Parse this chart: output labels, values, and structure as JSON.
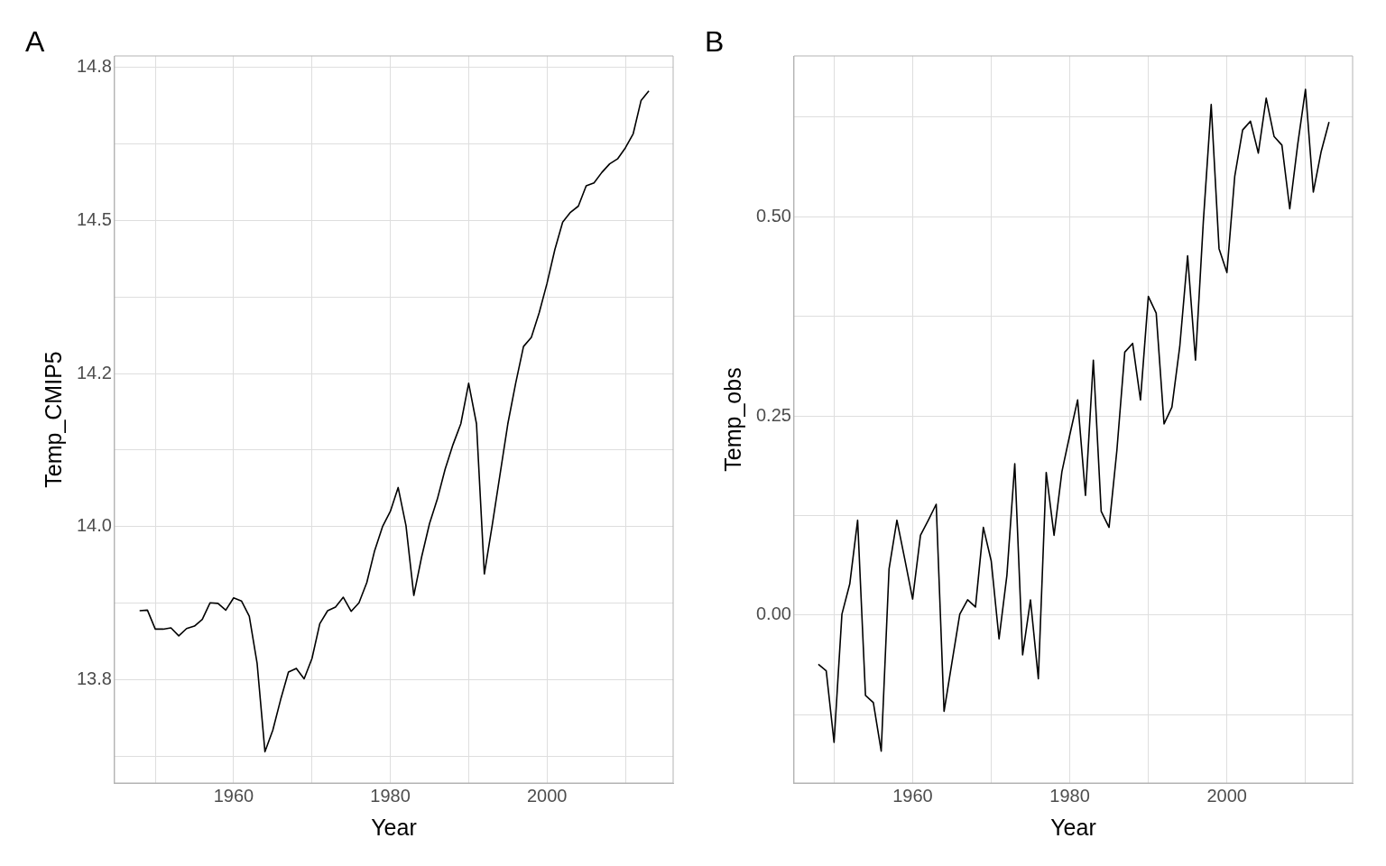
{
  "chart_data": [
    {
      "type": "line",
      "annotations": [
        "A"
      ],
      "xlabel": "Year",
      "ylabel": "Temp_CMIP5",
      "grid": true,
      "legend": false,
      "x": [
        1948,
        1949,
        1950,
        1951,
        1952,
        1953,
        1954,
        1955,
        1956,
        1957,
        1958,
        1959,
        1960,
        1961,
        1962,
        1963,
        1964,
        1965,
        1966,
        1967,
        1968,
        1969,
        1970,
        1971,
        1972,
        1973,
        1974,
        1975,
        1976,
        1977,
        1978,
        1979,
        1980,
        1981,
        1982,
        1983,
        1984,
        1985,
        1986,
        1987,
        1988,
        1989,
        1990,
        1991,
        1992,
        1993,
        1994,
        1995,
        1996,
        1997,
        1998,
        1999,
        2000,
        2001,
        2002,
        2003,
        2004,
        2005,
        2006,
        2007,
        2008,
        2009,
        2010,
        2011,
        2012,
        2013
      ],
      "series": [
        {
          "color": "#000000",
          "values": [
            13.863,
            13.864,
            13.833,
            13.833,
            13.835,
            13.822,
            13.834,
            13.838,
            13.849,
            13.876,
            13.875,
            13.864,
            13.884,
            13.879,
            13.854,
            13.777,
            13.633,
            13.668,
            13.718,
            13.763,
            13.769,
            13.752,
            13.785,
            13.842,
            13.863,
            13.869,
            13.885,
            13.862,
            13.876,
            13.909,
            13.961,
            14.0,
            14.025,
            14.064,
            14.002,
            13.888,
            13.951,
            14.005,
            14.045,
            14.094,
            14.134,
            14.168,
            14.234,
            14.168,
            13.923,
            14.002,
            14.085,
            14.168,
            14.234,
            14.294,
            14.309,
            14.349,
            14.397,
            14.452,
            14.497,
            14.513,
            14.523,
            14.556,
            14.561,
            14.578,
            14.592,
            14.6,
            14.618,
            14.641,
            14.695,
            14.711
          ]
        }
      ],
      "xlim": [
        1944.8,
        2016.1
      ],
      "xticks": [
        {
          "value": 1950,
          "label": null
        },
        1960,
        {
          "value": 1970,
          "label": null
        },
        1980,
        {
          "value": 1990,
          "label": null
        },
        2000,
        {
          "value": 2010,
          "label": null
        }
      ],
      "ylim": [
        13.582,
        14.768
      ],
      "yticks": [
        {
          "value": 13.625,
          "label": null
        },
        {
          "value": 13.75,
          "label": "13.8"
        },
        {
          "value": 13.875,
          "label": null
        },
        {
          "value": 14.0,
          "label": "14.0"
        },
        {
          "value": 14.125,
          "label": null
        },
        {
          "value": 14.25,
          "label": "14.2"
        },
        {
          "value": 14.375,
          "label": null
        },
        {
          "value": 14.5,
          "label": "14.5"
        },
        {
          "value": 14.625,
          "label": null
        },
        {
          "value": 14.75,
          "label": "14.8"
        }
      ]
    },
    {
      "type": "line",
      "annotations": [
        "B"
      ],
      "xlabel": "Year",
      "ylabel": "Temp_obs",
      "grid": true,
      "legend": false,
      "x": [
        1948,
        1949,
        1950,
        1951,
        1952,
        1953,
        1954,
        1955,
        1956,
        1957,
        1958,
        1959,
        1960,
        1961,
        1962,
        1963,
        1964,
        1965,
        1966,
        1967,
        1968,
        1969,
        1970,
        1971,
        1972,
        1973,
        1974,
        1975,
        1976,
        1977,
        1978,
        1979,
        1980,
        1981,
        1982,
        1983,
        1984,
        1985,
        1986,
        1987,
        1988,
        1989,
        1990,
        1991,
        1992,
        1993,
        1994,
        1995,
        1996,
        1997,
        1998,
        1999,
        2000,
        2001,
        2002,
        2003,
        2004,
        2005,
        2006,
        2007,
        2008,
        2009,
        2010,
        2011,
        2012,
        2013
      ],
      "series": [
        {
          "color": "#000000",
          "values": [
            -0.062,
            -0.07,
            -0.16,
            0.001,
            0.039,
            0.119,
            -0.101,
            -0.11,
            -0.171,
            0.058,
            0.119,
            0.07,
            0.02,
            0.1,
            0.119,
            0.139,
            -0.121,
            -0.06,
            0.001,
            0.019,
            0.01,
            0.11,
            0.068,
            -0.03,
            0.05,
            0.19,
            -0.05,
            0.019,
            -0.08,
            0.179,
            0.1,
            0.18,
            0.226,
            0.27,
            0.15,
            0.32,
            0.13,
            0.11,
            0.207,
            0.33,
            0.341,
            0.27,
            0.4,
            0.379,
            0.24,
            0.261,
            0.337,
            0.451,
            0.32,
            0.494,
            0.641,
            0.46,
            0.43,
            0.551,
            0.609,
            0.62,
            0.58,
            0.649,
            0.601,
            0.59,
            0.51,
            0.59,
            0.66,
            0.531,
            0.582,
            0.619
          ]
        }
      ],
      "xlim": [
        1944.9,
        2016.0
      ],
      "xticks": [
        {
          "value": 1950,
          "label": null
        },
        1960,
        {
          "value": 1970,
          "label": null
        },
        1980,
        {
          "value": 1990,
          "label": null
        },
        2000,
        {
          "value": 2010,
          "label": null
        }
      ],
      "ylim": [
        -0.211,
        0.702
      ],
      "yticks": [
        {
          "value": -0.125,
          "label": null
        },
        {
          "value": 0,
          "label": "0.00"
        },
        {
          "value": 0.125,
          "label": null
        },
        {
          "value": 0.25,
          "label": "0.25"
        },
        {
          "value": 0.375,
          "label": null
        },
        {
          "value": 0.5,
          "label": "0.50"
        },
        {
          "value": 0.625,
          "label": null
        }
      ]
    }
  ]
}
